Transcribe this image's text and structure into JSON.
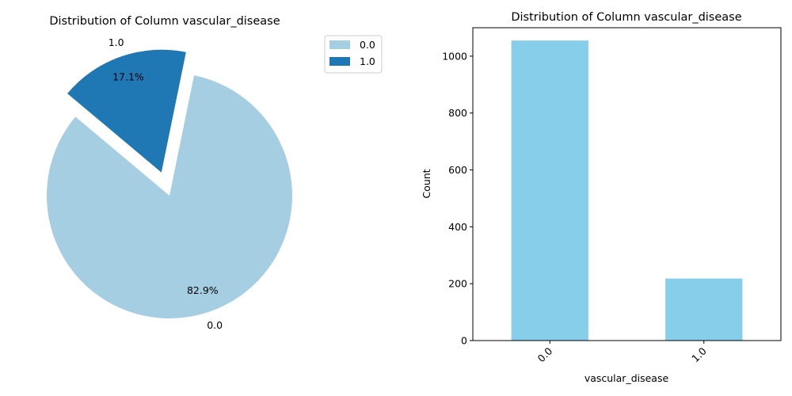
{
  "chart_data": [
    {
      "type": "pie",
      "title": "Distribution of Column vascular_disease",
      "labels": [
        "0.0",
        "1.0"
      ],
      "values": [
        82.9,
        17.1
      ],
      "pct_labels": [
        "82.9%",
        "17.1%"
      ],
      "explode": [
        0,
        0.2
      ],
      "colors": [
        "#a6cee3",
        "#1f78b4"
      ],
      "legend": {
        "entries": [
          "0.0",
          "1.0"
        ],
        "placement": "upper-right-outside"
      }
    },
    {
      "type": "bar",
      "title": "Distribution of Column vascular_disease",
      "categories": [
        "0.0",
        "1.0"
      ],
      "values": [
        1055,
        218
      ],
      "xlabel": "vascular_disease",
      "ylabel": "Count",
      "ylim": [
        0,
        1100
      ],
      "yticks": [
        0,
        200,
        400,
        600,
        800,
        1000
      ],
      "color": "#87ceeb",
      "grid": false
    }
  ]
}
